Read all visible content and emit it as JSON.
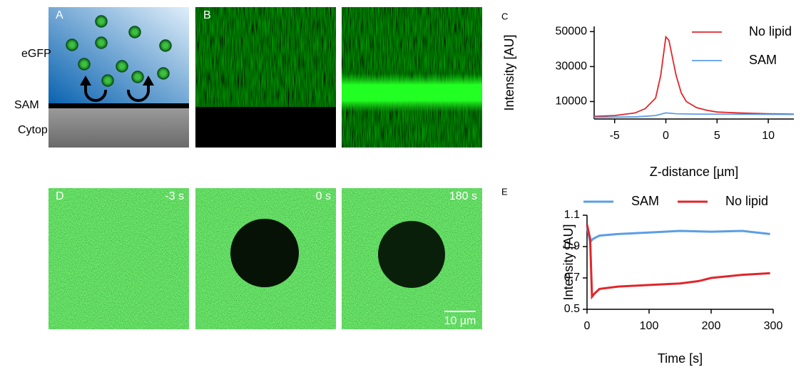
{
  "panels": {
    "A": {
      "label": "A",
      "texts": [
        "eGFP",
        "SAM",
        "Cytop"
      ]
    },
    "B": {
      "label": "B"
    },
    "C": {
      "label": "C"
    },
    "D": {
      "label": "D",
      "times": [
        "-3 s",
        "0 s",
        "180 s"
      ],
      "scale_bar": "10 µm"
    },
    "E": {
      "label": "E"
    }
  },
  "chart_data": [
    {
      "type": "line",
      "xlabel": "Z-distance [µm]",
      "ylabel": "Intensity [AU]",
      "xlim": [
        -7,
        12.5
      ],
      "xticks": [
        -5,
        0,
        5,
        10
      ],
      "ylim": [
        0,
        53000
      ],
      "yticks": [
        10000,
        30000,
        50000
      ],
      "legend": "upper right",
      "series": [
        {
          "name": "No lipid",
          "color": "#e0262b",
          "x": [
            -7,
            -5,
            -3,
            -2,
            -1,
            -0.5,
            0,
            0.3,
            1,
            1.5,
            2,
            3,
            4,
            5,
            7,
            10,
            12.5
          ],
          "values": [
            1500,
            2000,
            3500,
            6000,
            12000,
            25000,
            47000,
            45000,
            25000,
            15000,
            10000,
            6500,
            5000,
            4000,
            3500,
            3000,
            2800
          ]
        },
        {
          "name": "SAM",
          "color": "#5b9ee6",
          "x": [
            -7,
            -3,
            -1,
            0,
            1,
            3,
            12.5
          ],
          "values": [
            1000,
            1200,
            2000,
            3500,
            3000,
            2800,
            2600
          ]
        }
      ]
    },
    {
      "type": "line",
      "xlabel": "Time [s]",
      "ylabel": "Intensity [AU]",
      "xlim": [
        0,
        300
      ],
      "xticks": [
        0,
        100,
        200,
        300
      ],
      "ylim": [
        0.5,
        1.1
      ],
      "yticks": [
        0.5,
        0.7,
        0.9,
        1.1
      ],
      "legend": "top",
      "series": [
        {
          "name": "SAM",
          "color": "#5b9ee6",
          "x": [
            0,
            5,
            10,
            20,
            50,
            100,
            150,
            200,
            250,
            295
          ],
          "values": [
            1.03,
            0.93,
            0.95,
            0.97,
            0.98,
            0.99,
            1.0,
            0.995,
            1.0,
            0.98
          ]
        },
        {
          "name": "No lipid",
          "color": "#e0262b",
          "x": [
            0,
            5,
            8,
            12,
            20,
            50,
            100,
            150,
            180,
            200,
            250,
            295
          ],
          "values": [
            1.04,
            0.95,
            0.58,
            0.6,
            0.63,
            0.645,
            0.655,
            0.665,
            0.68,
            0.7,
            0.72,
            0.73
          ]
        }
      ]
    }
  ]
}
